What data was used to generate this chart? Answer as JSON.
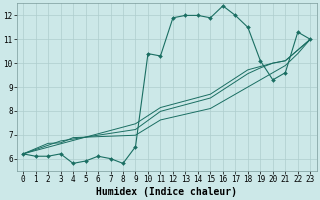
{
  "xlabel": "Humidex (Indice chaleur)",
  "x": [
    0,
    1,
    2,
    3,
    4,
    5,
    6,
    7,
    8,
    9,
    10,
    11,
    12,
    13,
    14,
    15,
    16,
    17,
    18,
    19,
    20,
    21,
    22,
    23
  ],
  "y_main": [
    6.2,
    6.1,
    6.1,
    6.2,
    5.8,
    5.9,
    6.1,
    6.0,
    5.8,
    6.5,
    10.4,
    10.3,
    11.9,
    12.0,
    12.0,
    11.9,
    12.4,
    12.0,
    11.5,
    10.1,
    9.3,
    9.6,
    11.3,
    11.0
  ],
  "y_line1": [
    6.2,
    6.42,
    6.64,
    6.66,
    6.88,
    6.9,
    6.92,
    6.94,
    6.96,
    6.98,
    7.3,
    7.62,
    7.74,
    7.86,
    7.98,
    8.1,
    8.4,
    8.7,
    9.0,
    9.3,
    9.6,
    9.9,
    10.4,
    11.0
  ],
  "y_line2": [
    6.2,
    6.38,
    6.56,
    6.74,
    6.82,
    6.9,
    6.98,
    7.06,
    7.14,
    7.22,
    7.6,
    7.98,
    8.12,
    8.26,
    8.4,
    8.54,
    8.88,
    9.22,
    9.56,
    9.8,
    10.0,
    10.1,
    10.55,
    11.0
  ],
  "y_line3": [
    6.2,
    6.34,
    6.48,
    6.62,
    6.76,
    6.9,
    7.04,
    7.18,
    7.32,
    7.46,
    7.8,
    8.14,
    8.28,
    8.42,
    8.56,
    8.7,
    9.04,
    9.38,
    9.72,
    9.86,
    10.0,
    10.1,
    10.55,
    11.0
  ],
  "ylim": [
    5.5,
    12.5
  ],
  "xlim": [
    -0.5,
    23.5
  ],
  "yticks": [
    6,
    7,
    8,
    9,
    10,
    11,
    12
  ],
  "xticks": [
    0,
    1,
    2,
    3,
    4,
    5,
    6,
    7,
    8,
    9,
    10,
    11,
    12,
    13,
    14,
    15,
    16,
    17,
    18,
    19,
    20,
    21,
    22,
    23
  ],
  "line_color": "#1a6e62",
  "bg_color": "#cce8e8",
  "grid_color": "#aecece",
  "tick_label_fontsize": 5.5,
  "xlabel_fontsize": 7,
  "marker": "D",
  "marker_size": 2.0
}
